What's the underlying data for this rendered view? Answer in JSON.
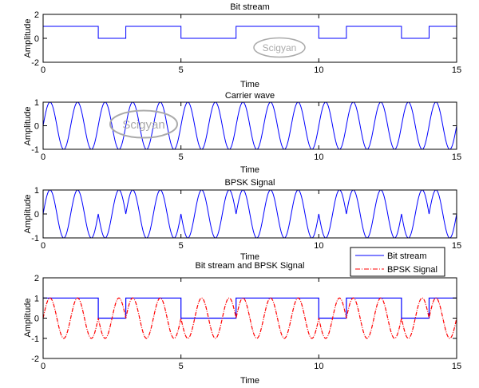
{
  "chart_data": [
    {
      "type": "line",
      "title": "Bit stream",
      "xlabel": "Time",
      "ylabel": "Amplitude",
      "xlim": [
        0,
        15
      ],
      "ylim": [
        -2,
        2
      ],
      "xticks": [
        0,
        5,
        10,
        15
      ],
      "yticks": [
        -2,
        0,
        2
      ],
      "bits": [
        1,
        1,
        0,
        1,
        1,
        0,
        0,
        1,
        1,
        1,
        0,
        1,
        1,
        0,
        1
      ],
      "series": [
        {
          "name": "Bit stream",
          "color": "#0000ff",
          "style": "step"
        }
      ],
      "watermark": "Scigyan"
    },
    {
      "type": "line",
      "title": "Carrier wave",
      "xlabel": "Time",
      "ylabel": "Amplitude",
      "xlim": [
        0,
        15
      ],
      "ylim": [
        -1,
        1
      ],
      "xticks": [
        0,
        5,
        10,
        15
      ],
      "yticks": [
        -1,
        0,
        1
      ],
      "function": "sin(2*pi*t)",
      "frequency_hz": 1,
      "series": [
        {
          "name": "Carrier wave",
          "color": "#0000ff",
          "style": "solid"
        }
      ],
      "watermark": "Scigyan"
    },
    {
      "type": "line",
      "title": "BPSK Signal",
      "xlabel": "Time",
      "ylabel": "Amplitude",
      "xlim": [
        0,
        15
      ],
      "ylim": [
        -1,
        1
      ],
      "xticks": [
        0,
        5,
        10,
        15
      ],
      "yticks": [
        -1,
        0,
        1
      ],
      "function": "(2*bit-1)*sin(2*pi*t)",
      "series": [
        {
          "name": "BPSK Signal",
          "color": "#0000ff",
          "style": "solid"
        }
      ]
    },
    {
      "type": "line",
      "title": "Bit stream and BPSK Signal",
      "xlabel": "Time",
      "ylabel": "Amplitude",
      "xlim": [
        0,
        15
      ],
      "ylim": [
        -2,
        2
      ],
      "xticks": [
        0,
        5,
        10,
        15
      ],
      "yticks": [
        -2,
        -1,
        0,
        1,
        2
      ],
      "series": [
        {
          "name": "Bit stream",
          "color": "#0000ff",
          "style": "step"
        },
        {
          "name": "BPSK Signal",
          "color": "#ff0000",
          "style": "dash-dot"
        }
      ],
      "legend": {
        "position": "top-right-outside",
        "entries": [
          "Bit stream",
          "BPSK Signal"
        ]
      }
    }
  ],
  "labels": {
    "t1": "Bit stream",
    "t2": "Carrier wave",
    "t3": "BPSK Signal",
    "t4": "Bit stream and BPSK Signal",
    "xlabel": "Time",
    "ylabel": "Amplitude",
    "watermark": "Scigyan",
    "legend1": "Bit stream",
    "legend2": "BPSK Signal"
  }
}
